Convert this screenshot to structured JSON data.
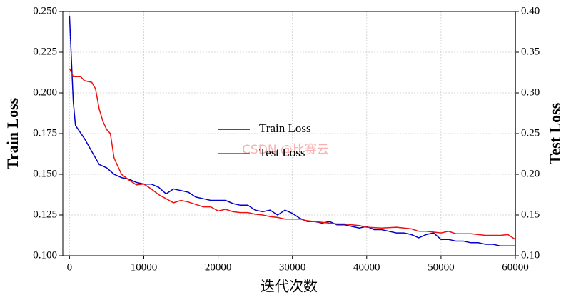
{
  "chart_data": {
    "type": "line",
    "xlabel": "迭代次数",
    "ylabel": "Train Loss",
    "y2label": "Test Loss",
    "watermark": "CSDN @比赛云",
    "xlim": [
      -900,
      60000
    ],
    "xticks": [
      0,
      10000,
      20000,
      30000,
      40000,
      50000,
      60000
    ],
    "ylim": [
      0.1,
      0.25
    ],
    "yticks": [
      {
        "value": 0.1,
        "label": "0.100"
      },
      {
        "value": 0.125,
        "label": "0.125"
      },
      {
        "value": 0.15,
        "label": "0.150"
      },
      {
        "value": 0.175,
        "label": "0.175"
      },
      {
        "value": 0.2,
        "label": "0.200"
      },
      {
        "value": 0.225,
        "label": "0.225"
      },
      {
        "value": 0.25,
        "label": "0.250"
      }
    ],
    "y2lim": [
      0.1,
      0.4
    ],
    "y2ticks": [
      {
        "value": 0.1,
        "label": "0.10"
      },
      {
        "value": 0.15,
        "label": "0.15"
      },
      {
        "value": 0.2,
        "label": "0.20"
      },
      {
        "value": 0.25,
        "label": "0.25"
      },
      {
        "value": 0.3,
        "label": "0.30"
      },
      {
        "value": 0.35,
        "label": "0.35"
      },
      {
        "value": 0.4,
        "label": "0.40"
      }
    ],
    "grid": true,
    "legend": "center",
    "series": [
      {
        "name": "Train Loss",
        "color": "#0000cc",
        "axis": "y",
        "x": [
          0,
          500,
          800,
          2000,
          3000,
          4000,
          5000,
          6000,
          7000,
          8000,
          9000,
          10000,
          11000,
          12000,
          13000,
          14000,
          15000,
          16000,
          17000,
          18000,
          19000,
          20000,
          21000,
          22000,
          23000,
          24000,
          25000,
          26000,
          27000,
          28000,
          29000,
          30000,
          31000,
          32000,
          33000,
          34000,
          35000,
          36000,
          37000,
          38000,
          39000,
          40000,
          41000,
          42000,
          43000,
          44000,
          45000,
          46000,
          47000,
          48000,
          49000,
          50000,
          51000,
          52000,
          53000,
          54000,
          55000,
          56000,
          57000,
          58000,
          59000,
          60000
        ],
        "values": [
          0.247,
          0.195,
          0.18,
          0.172,
          0.164,
          0.156,
          0.154,
          0.15,
          0.148,
          0.147,
          0.145,
          0.144,
          0.144,
          0.142,
          0.138,
          0.141,
          0.14,
          0.139,
          0.136,
          0.135,
          0.134,
          0.134,
          0.134,
          0.132,
          0.131,
          0.131,
          0.128,
          0.127,
          0.128,
          0.125,
          0.128,
          0.126,
          0.123,
          0.121,
          0.121,
          0.12,
          0.121,
          0.119,
          0.119,
          0.118,
          0.117,
          0.118,
          0.116,
          0.116,
          0.115,
          0.114,
          0.114,
          0.113,
          0.111,
          0.113,
          0.114,
          0.11,
          0.11,
          0.109,
          0.109,
          0.108,
          0.108,
          0.107,
          0.107,
          0.106,
          0.106,
          0.106
        ]
      },
      {
        "name": "Test Loss",
        "color": "#ee1111",
        "axis": "y2",
        "x": [
          0,
          500,
          1500,
          2000,
          3000,
          3500,
          4000,
          4500,
          5000,
          5500,
          6000,
          6500,
          7000,
          8000,
          9000,
          10000,
          11000,
          12000,
          13000,
          14000,
          15000,
          16000,
          17000,
          18000,
          19000,
          20000,
          21000,
          22000,
          23000,
          24000,
          25000,
          26000,
          27000,
          28000,
          29000,
          30000,
          31000,
          32000,
          33000,
          34000,
          35000,
          36000,
          37000,
          38000,
          39000,
          40000,
          42000,
          44000,
          46000,
          47000,
          48000,
          50000,
          51000,
          52000,
          54000,
          56000,
          58000,
          59000,
          60000
        ],
        "values": [
          0.33,
          0.32,
          0.32,
          0.315,
          0.313,
          0.305,
          0.28,
          0.265,
          0.255,
          0.25,
          0.22,
          0.21,
          0.2,
          0.193,
          0.187,
          0.188,
          0.182,
          0.175,
          0.17,
          0.165,
          0.168,
          0.166,
          0.163,
          0.16,
          0.16,
          0.155,
          0.157,
          0.154,
          0.153,
          0.153,
          0.151,
          0.15,
          0.148,
          0.147,
          0.145,
          0.145,
          0.145,
          0.143,
          0.142,
          0.141,
          0.14,
          0.139,
          0.139,
          0.138,
          0.137,
          0.135,
          0.134,
          0.135,
          0.133,
          0.13,
          0.13,
          0.128,
          0.13,
          0.127,
          0.127,
          0.125,
          0.125,
          0.126,
          0.12
        ]
      }
    ]
  }
}
